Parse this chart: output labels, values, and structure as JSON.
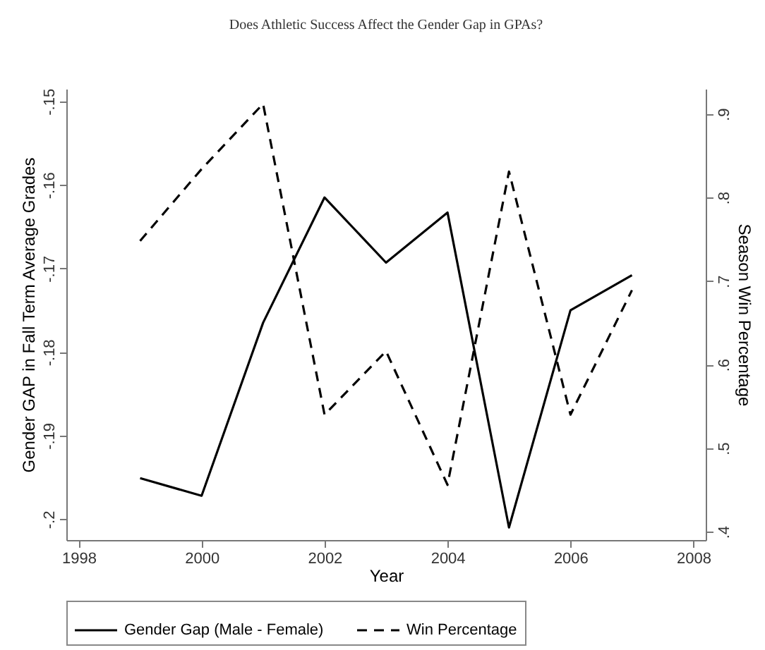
{
  "chart_data": {
    "type": "line",
    "title": "Does Athletic Success Affect the Gender Gap in GPAs?",
    "xlabel": "Year",
    "ylabel": "Gender GAP  in Fall Term Average Grades",
    "y2label": "Season Win Percentage",
    "x": [
      1999,
      2000,
      2001,
      2002,
      2003,
      2004,
      2005,
      2006,
      2007
    ],
    "series": [
      {
        "name": "Gender Gap (Male - Female)",
        "color": "#000000",
        "line_style": "solid",
        "values": [
          -0.1951,
          -0.1972,
          -0.1765,
          -0.1615,
          -0.1693,
          -0.1633,
          -0.201,
          -0.175,
          -0.1708
        ]
      },
      {
        "name": "Win Percentage",
        "color": "#000000",
        "line_style": "dashed",
        "axis": "y2",
        "values": [
          0.748,
          0.834,
          0.912,
          0.54,
          0.616,
          0.456,
          0.831,
          0.54,
          0.689
        ]
      }
    ],
    "xlim": [
      1997.8,
      2008.2
    ],
    "xticks": [
      1998,
      2000,
      2002,
      2004,
      2006,
      2008
    ],
    "ylim": [
      -0.2025,
      -0.1485
    ],
    "yticks": [
      {
        "value": -0.2,
        "label": "-.2"
      },
      {
        "value": -0.19,
        "label": "-.19"
      },
      {
        "value": -0.18,
        "label": "-.18"
      },
      {
        "value": -0.17,
        "label": "-.17"
      },
      {
        "value": -0.16,
        "label": "-.16"
      },
      {
        "value": -0.15,
        "label": "-.15"
      }
    ],
    "y2lim": [
      0.39,
      0.93
    ],
    "y2ticks": [
      {
        "value": 0.4,
        "label": ".4"
      },
      {
        "value": 0.5,
        "label": ".5"
      },
      {
        "value": 0.6,
        "label": ".6"
      },
      {
        "value": 0.7,
        "label": ".7"
      },
      {
        "value": 0.8,
        "label": ".8"
      },
      {
        "value": 0.9,
        "label": ".9"
      }
    ],
    "grid": false,
    "legend": "bottom"
  }
}
